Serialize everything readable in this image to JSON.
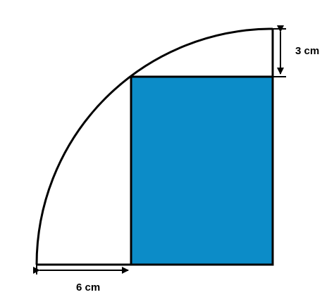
{
  "figure": {
    "labels": {
      "top_right": "3 cm",
      "bottom_left": "6 cm"
    },
    "colors": {
      "rectangle_fill": "#0c8cc8",
      "stroke": "#000000",
      "background": "#ffffff"
    }
  }
}
